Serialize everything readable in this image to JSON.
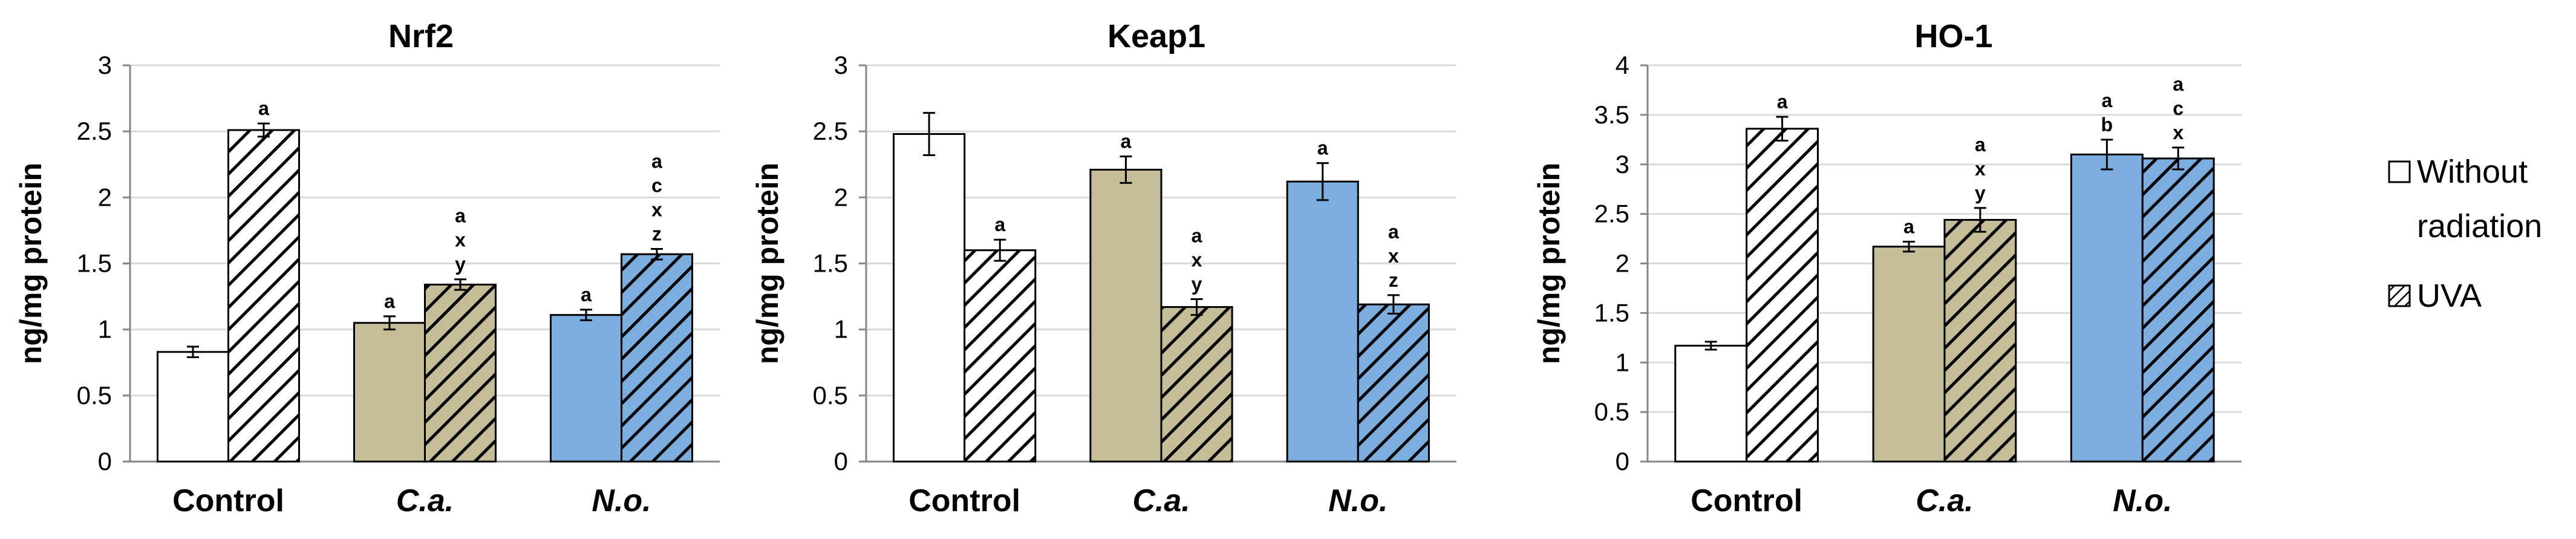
{
  "chart_data": [
    {
      "type": "bar",
      "title": "Nrf2",
      "ylabel": "ng/mg protein",
      "ylim": [
        0,
        3
      ],
      "yticks": [
        "0",
        "0.5",
        "1",
        "1.5",
        "2",
        "2.5",
        "3"
      ],
      "categories": [
        "Control",
        "C.a.",
        "N.o."
      ],
      "series": [
        {
          "name": "Without radiation",
          "values": [
            0.83,
            1.05,
            1.11
          ],
          "errors": [
            0.04,
            0.05,
            0.04
          ],
          "labels": [
            [],
            [
              "a"
            ],
            [
              "a"
            ]
          ]
        },
        {
          "name": "UVA",
          "values": [
            2.51,
            1.34,
            1.57
          ],
          "errors": [
            0.05,
            0.04,
            0.04
          ],
          "labels": [
            [
              "a"
            ],
            [
              "a",
              "x",
              "y"
            ],
            [
              "a",
              "c",
              "x",
              "z"
            ]
          ]
        }
      ]
    },
    {
      "type": "bar",
      "title": "Keap1",
      "ylabel": "ng/mg protein",
      "ylim": [
        0,
        3
      ],
      "yticks": [
        "0",
        "0.5",
        "1",
        "1.5",
        "2",
        "2.5",
        "3"
      ],
      "categories": [
        "Control",
        "C.a.",
        "N.o."
      ],
      "series": [
        {
          "name": "Without radiation",
          "values": [
            2.48,
            2.21,
            2.12
          ],
          "errors": [
            0.16,
            0.1,
            0.14
          ],
          "labels": [
            [],
            [
              "a"
            ],
            [
              "a"
            ]
          ]
        },
        {
          "name": "UVA",
          "values": [
            1.6,
            1.17,
            1.19
          ],
          "errors": [
            0.08,
            0.06,
            0.07
          ],
          "labels": [
            [
              "a"
            ],
            [
              "a",
              "x",
              "y"
            ],
            [
              "a",
              "x",
              "z"
            ]
          ]
        }
      ]
    },
    {
      "type": "bar",
      "title": "HO-1",
      "ylabel": "ng/mg protein",
      "ylim": [
        0,
        4
      ],
      "yticks": [
        "0",
        "0.5",
        "1",
        "1.5",
        "2",
        "2.5",
        "3",
        "3.5",
        "4"
      ],
      "categories": [
        "Control",
        "C.a.",
        "N.o."
      ],
      "series": [
        {
          "name": "Without radiation",
          "values": [
            1.17,
            2.17,
            3.1
          ],
          "errors": [
            0.04,
            0.05,
            0.15
          ],
          "labels": [
            [],
            [
              "a"
            ],
            [
              "a",
              "b"
            ]
          ]
        },
        {
          "name": "UVA",
          "values": [
            3.36,
            2.44,
            3.06
          ],
          "errors": [
            0.12,
            0.12,
            0.11
          ],
          "labels": [
            [
              "a"
            ],
            [
              "a",
              "x",
              "y"
            ],
            [
              "a",
              "c",
              "x"
            ]
          ]
        }
      ]
    }
  ],
  "legend": {
    "items": [
      {
        "label_line1": "Without",
        "label_line2": "radiation",
        "fill": "white"
      },
      {
        "label_line1": "UVA",
        "fill": "hatched"
      }
    ]
  },
  "colors": {
    "control": "#ffffff",
    "ca": "#c4bd97",
    "no": "#7badde"
  }
}
